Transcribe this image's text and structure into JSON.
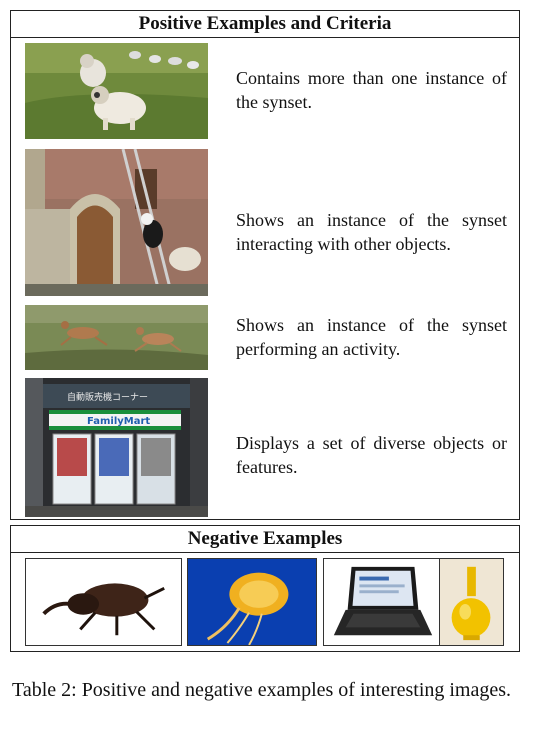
{
  "positive": {
    "title": "Positive Examples and Criteria",
    "rows": [
      {
        "criteria": "Contains more than one instance of the synset."
      },
      {
        "criteria": "Shows an instance of the synset interacting with other objects."
      },
      {
        "criteria": "Shows an instance of the synset performing an activity."
      },
      {
        "criteria": "Displays a set of diverse objects or features."
      }
    ],
    "vending_sign": "自動販売機コーナー",
    "store_logo": "FamilyMart"
  },
  "negative": {
    "title": "Negative Examples"
  },
  "caption": "Table 2: Positive and negative examples of interesting images."
}
